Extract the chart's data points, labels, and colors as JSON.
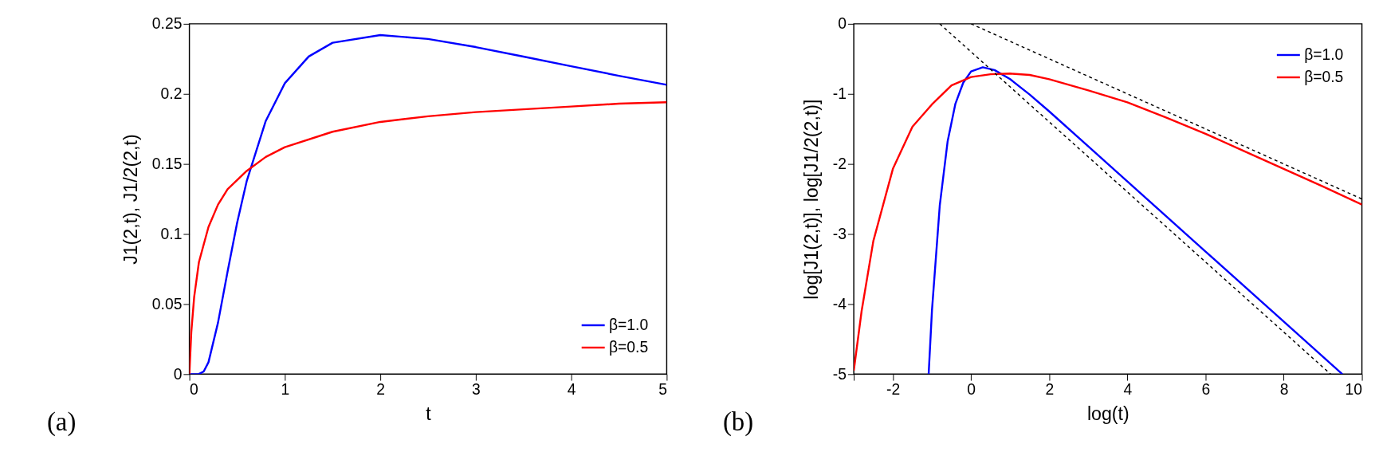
{
  "chart_data": [
    {
      "type": "line",
      "xlabel": "t",
      "ylabel": "J1(2,t), J1/2(2,t)",
      "xlim": [
        0,
        5
      ],
      "ylim": [
        0,
        0.25
      ],
      "xticks": [
        0,
        1,
        2,
        3,
        4,
        5
      ],
      "yticks": [
        0,
        0.05,
        0.1,
        0.15,
        0.2,
        0.25
      ],
      "grid": false,
      "legend": "bottom right",
      "line_style": "solid",
      "annotations": [
        "(a)"
      ],
      "series": [
        {
          "name": "β=1.0",
          "color": "#0000ff",
          "x": [
            0,
            0.1,
            0.15,
            0.2,
            0.3,
            0.4,
            0.5,
            0.6,
            0.8,
            1,
            1.25,
            1.5,
            2,
            2.5,
            3,
            3.5,
            4,
            4.5,
            5
          ],
          "values": [
            0,
            0.0001,
            0.0019,
            0.0085,
            0.0368,
            0.0732,
            0.108,
            0.1376,
            0.1807,
            0.2076,
            0.2267,
            0.2365,
            0.242,
            0.2392,
            0.2334,
            0.2266,
            0.2197,
            0.2129,
            0.2065
          ]
        },
        {
          "name": "β=0.5",
          "color": "#ff0000",
          "x": [
            0,
            0.02,
            0.05,
            0.1,
            0.2,
            0.3,
            0.4,
            0.6,
            0.8,
            1,
            1.5,
            2,
            2.5,
            3,
            3.5,
            4,
            4.5,
            5
          ],
          "values": [
            0,
            0.03,
            0.055,
            0.08,
            0.105,
            0.121,
            0.132,
            0.145,
            0.155,
            0.162,
            0.173,
            0.18,
            0.184,
            0.187,
            0.189,
            0.191,
            0.193,
            0.194
          ]
        }
      ]
    },
    {
      "type": "line",
      "xlabel": "log(t)",
      "ylabel": "log[J1(2,t)], log[J1/2(2,t)]",
      "xlim": [
        -3,
        10
      ],
      "ylim": [
        -5,
        0
      ],
      "xticks": [
        {
          "value": -3,
          "label": null
        },
        -2,
        0,
        2,
        4,
        6,
        8,
        10
      ],
      "yticks": [
        -5,
        -4,
        -3,
        -2,
        -1,
        0
      ],
      "grid": false,
      "legend": "top right",
      "line_style": "solid",
      "annotations": [
        "(b)"
      ],
      "series": [
        {
          "name": "β=1.0",
          "color": "#0000ff",
          "x": [
            -1.085,
            -1,
            -0.8,
            -0.6,
            -0.4,
            -0.2,
            0,
            0.3,
            0.6,
            1,
            1.5,
            2,
            3,
            4,
            6,
            8,
            9.5
          ],
          "values": [
            -5.0,
            -4.09,
            -2.59,
            -1.68,
            -1.14,
            -0.84,
            -0.68,
            -0.62,
            -0.66,
            -0.79,
            -1.01,
            -1.25,
            -1.75,
            -2.25,
            -3.25,
            -4.25,
            -5.0
          ]
        },
        {
          "name": "β=0.5",
          "color": "#ff0000",
          "x": [
            -3,
            -2.8,
            -2.5,
            -2,
            -1.5,
            -1,
            -0.5,
            0,
            0.5,
            1,
            1.5,
            2,
            3,
            4,
            5,
            6,
            7,
            8,
            9,
            10
          ],
          "values": [
            -4.95,
            -4.1,
            -3.1,
            -2.07,
            -1.47,
            -1.15,
            -0.88,
            -0.76,
            -0.72,
            -0.71,
            -0.73,
            -0.79,
            -0.95,
            -1.12,
            -1.34,
            -1.57,
            -1.82,
            -2.07,
            -2.32,
            -2.58
          ]
        },
        {
          "color": "#000000",
          "line_style": "dashed",
          "x": [
            -0.8,
            9.2
          ],
          "values": [
            0,
            -5
          ]
        },
        {
          "color": "#000000",
          "line_style": "dashed",
          "x": [
            0,
            10
          ],
          "values": [
            0,
            -2.5
          ]
        }
      ]
    }
  ]
}
